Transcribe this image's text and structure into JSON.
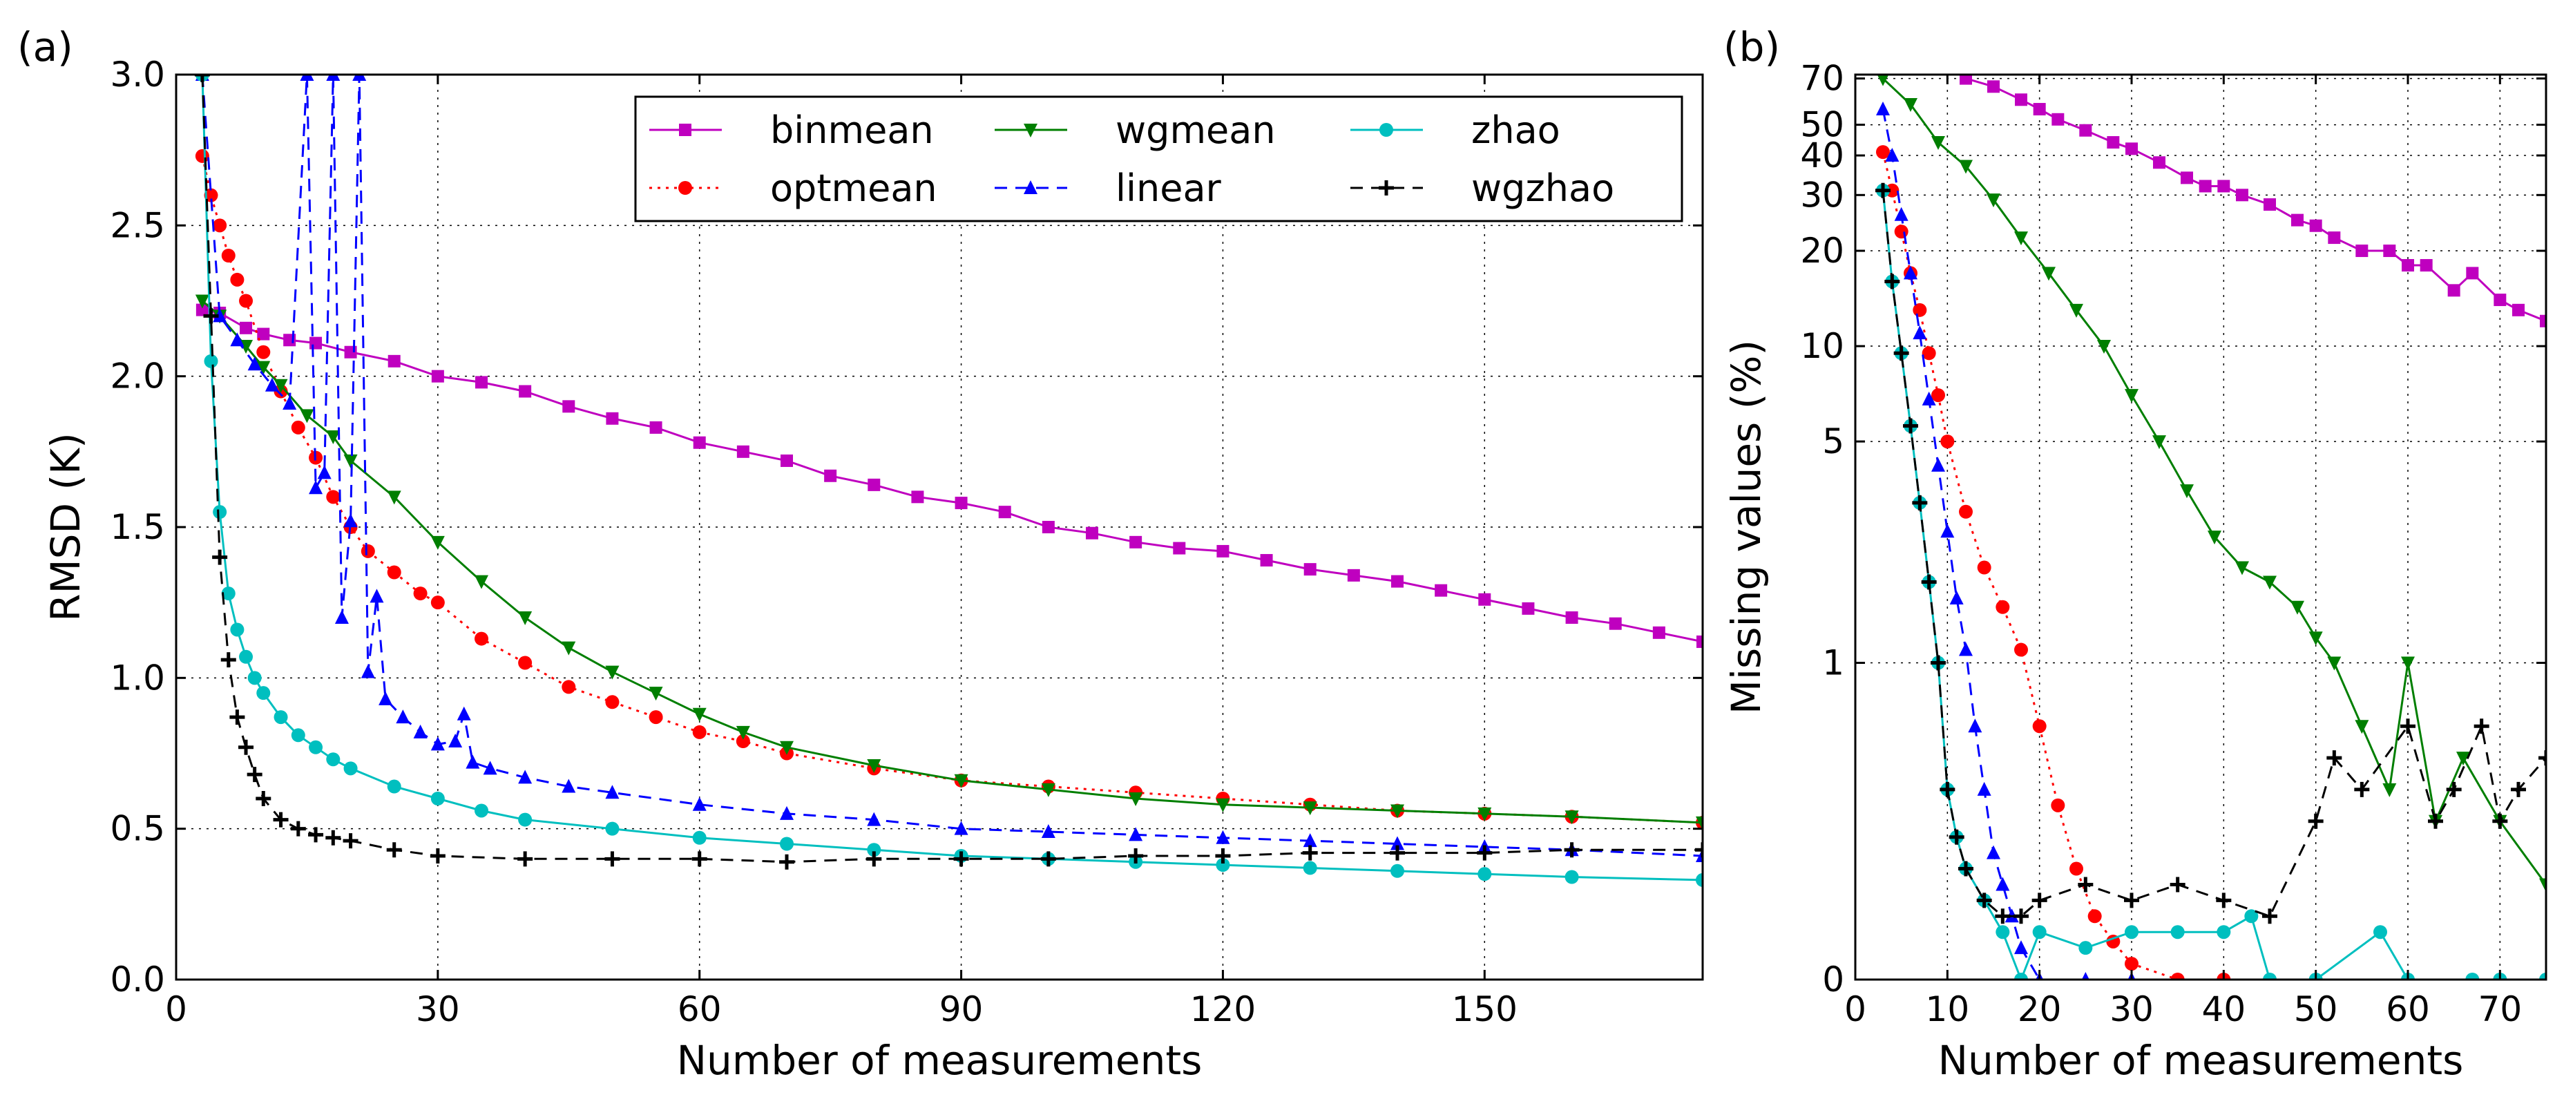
{
  "chart_data": [
    {
      "panel_label": "(a)",
      "type": "line",
      "xlabel": "Number of measurements",
      "ylabel": "RMSD (K)",
      "xlim": [
        0,
        175
      ],
      "ylim": [
        0.0,
        3.0
      ],
      "xticks": [
        0,
        30,
        60,
        90,
        120,
        150
      ],
      "xtick_labels": [
        "0",
        "30",
        "60",
        "90",
        "120",
        "150"
      ],
      "yticks": [
        0.0,
        0.5,
        1.0,
        1.5,
        2.0,
        2.5,
        3.0
      ],
      "ytick_labels": [
        "0.0",
        "0.5",
        "1.0",
        "1.5",
        "2.0",
        "2.5",
        "3.0"
      ],
      "grid": true,
      "legend_position": "upper-right",
      "series": [
        {
          "name": "binmean",
          "color": "#bf00bf",
          "marker": "square",
          "style": "solid",
          "x": [
            3,
            5,
            8,
            10,
            13,
            16,
            20,
            25,
            30,
            35,
            40,
            45,
            50,
            55,
            60,
            65,
            70,
            75,
            80,
            85,
            90,
            95,
            100,
            105,
            110,
            115,
            120,
            125,
            130,
            135,
            140,
            145,
            150,
            155,
            160,
            165,
            170,
            175
          ],
          "y": [
            2.22,
            2.21,
            2.16,
            2.14,
            2.12,
            2.11,
            2.08,
            2.05,
            2.0,
            1.98,
            1.95,
            1.9,
            1.86,
            1.83,
            1.78,
            1.75,
            1.72,
            1.67,
            1.64,
            1.6,
            1.58,
            1.55,
            1.5,
            1.48,
            1.45,
            1.43,
            1.42,
            1.39,
            1.36,
            1.34,
            1.32,
            1.29,
            1.26,
            1.23,
            1.2,
            1.18,
            1.15,
            1.12
          ]
        },
        {
          "name": "optmean",
          "color": "#ff0000",
          "marker": "circle",
          "style": "dotted",
          "x": [
            3,
            4,
            5,
            6,
            7,
            8,
            10,
            12,
            14,
            16,
            18,
            20,
            22,
            25,
            28,
            30,
            35,
            40,
            45,
            50,
            55,
            60,
            65,
            70,
            80,
            90,
            100,
            110,
            120,
            130,
            140,
            150,
            160,
            175
          ],
          "y": [
            2.73,
            2.6,
            2.5,
            2.4,
            2.32,
            2.25,
            2.08,
            1.95,
            1.83,
            1.73,
            1.6,
            1.5,
            1.42,
            1.35,
            1.28,
            1.25,
            1.13,
            1.05,
            0.97,
            0.92,
            0.87,
            0.82,
            0.79,
            0.75,
            0.7,
            0.66,
            0.64,
            0.62,
            0.6,
            0.58,
            0.56,
            0.55,
            0.54,
            0.52
          ]
        },
        {
          "name": "wgmean",
          "color": "#007f00",
          "marker": "triangle-down",
          "style": "solid",
          "x": [
            3,
            5,
            8,
            10,
            12,
            15,
            18,
            20,
            25,
            30,
            35,
            40,
            45,
            50,
            55,
            60,
            65,
            70,
            80,
            90,
            100,
            110,
            120,
            130,
            140,
            150,
            160,
            175
          ],
          "y": [
            2.25,
            2.2,
            2.1,
            2.03,
            1.97,
            1.87,
            1.8,
            1.72,
            1.6,
            1.45,
            1.32,
            1.2,
            1.1,
            1.02,
            0.95,
            0.88,
            0.82,
            0.77,
            0.71,
            0.66,
            0.63,
            0.6,
            0.58,
            0.57,
            0.56,
            0.55,
            0.54,
            0.52
          ]
        },
        {
          "name": "linear",
          "color": "#0000ff",
          "marker": "triangle-up",
          "style": "dashed",
          "x": [
            3,
            5,
            7,
            9,
            11,
            13,
            15,
            16,
            17,
            18,
            19,
            20,
            21,
            22,
            23,
            24,
            26,
            28,
            30,
            32,
            33,
            34,
            36,
            40,
            45,
            50,
            60,
            70,
            80,
            90,
            100,
            110,
            120,
            130,
            140,
            150,
            160,
            175
          ],
          "y": [
            3.0,
            2.2,
            2.12,
            2.04,
            1.97,
            1.91,
            3.0,
            1.63,
            1.68,
            3.0,
            1.2,
            1.52,
            3.0,
            1.02,
            1.27,
            0.93,
            0.87,
            0.82,
            0.78,
            0.79,
            0.88,
            0.72,
            0.7,
            0.67,
            0.64,
            0.62,
            0.58,
            0.55,
            0.53,
            0.5,
            0.49,
            0.48,
            0.47,
            0.46,
            0.45,
            0.44,
            0.43,
            0.41
          ]
        },
        {
          "name": "zhao",
          "color": "#00bfbf",
          "marker": "circle",
          "style": "solid",
          "x": [
            3,
            4,
            5,
            6,
            7,
            8,
            9,
            10,
            12,
            14,
            16,
            18,
            20,
            25,
            30,
            35,
            40,
            50,
            60,
            70,
            80,
            90,
            100,
            110,
            120,
            130,
            140,
            150,
            160,
            175
          ],
          "y": [
            3.0,
            2.05,
            1.55,
            1.28,
            1.16,
            1.07,
            1.0,
            0.95,
            0.87,
            0.81,
            0.77,
            0.73,
            0.7,
            0.64,
            0.6,
            0.56,
            0.53,
            0.5,
            0.47,
            0.45,
            0.43,
            0.41,
            0.4,
            0.39,
            0.38,
            0.37,
            0.36,
            0.35,
            0.34,
            0.33
          ]
        },
        {
          "name": "wgzhao",
          "color": "#000000",
          "marker": "plus",
          "style": "dashed",
          "x": [
            3,
            4,
            5,
            6,
            7,
            8,
            9,
            10,
            12,
            14,
            16,
            18,
            20,
            25,
            30,
            40,
            50,
            60,
            70,
            80,
            90,
            100,
            110,
            120,
            130,
            140,
            150,
            160,
            175
          ],
          "y": [
            3.0,
            2.2,
            1.4,
            1.06,
            0.87,
            0.77,
            0.68,
            0.6,
            0.53,
            0.5,
            0.48,
            0.47,
            0.46,
            0.43,
            0.41,
            0.4,
            0.4,
            0.4,
            0.39,
            0.4,
            0.4,
            0.4,
            0.41,
            0.41,
            0.42,
            0.42,
            0.42,
            0.43,
            0.43
          ]
        }
      ]
    },
    {
      "panel_label": "(b)",
      "type": "line",
      "xlabel": "Number of measurements",
      "ylabel": "Missing values (%)",
      "xlim": [
        0,
        75
      ],
      "ylim": [
        0,
        72
      ],
      "yscale": "symlog",
      "xticks": [
        0,
        10,
        20,
        30,
        40,
        50,
        60,
        70
      ],
      "xtick_labels": [
        "0",
        "10",
        "20",
        "30",
        "40",
        "50",
        "60",
        "70"
      ],
      "yticks": [
        0,
        1,
        5,
        10,
        20,
        30,
        40,
        50,
        70
      ],
      "ytick_labels": [
        "0",
        "1",
        "5",
        "10",
        "20",
        "30",
        "40",
        "50",
        "70"
      ],
      "grid": true,
      "series": [
        {
          "name": "binmean",
          "color": "#bf00bf",
          "marker": "square",
          "style": "solid",
          "x": [
            12,
            15,
            18,
            20,
            22,
            25,
            28,
            30,
            33,
            36,
            38,
            40,
            42,
            45,
            48,
            50,
            52,
            55,
            58,
            60,
            62,
            65,
            67,
            70,
            72,
            75
          ],
          "y": [
            70,
            66,
            60,
            56,
            52,
            48,
            44,
            42,
            38,
            34,
            32,
            32,
            30,
            28,
            25,
            24,
            22,
            20,
            20,
            18,
            18,
            15,
            17,
            14,
            13,
            12
          ]
        },
        {
          "name": "optmean",
          "color": "#ff0000",
          "marker": "circle",
          "style": "dotted",
          "x": [
            3,
            4,
            5,
            6,
            7,
            8,
            9,
            10,
            12,
            14,
            16,
            18,
            20,
            22,
            24,
            26,
            28,
            30,
            35,
            40
          ],
          "y": [
            41,
            31,
            23,
            17,
            13,
            9.5,
            7,
            5,
            3,
            2.0,
            1.5,
            1.1,
            0.8,
            0.55,
            0.35,
            0.2,
            0.12,
            0.05,
            0.0,
            0.0
          ]
        },
        {
          "name": "wgmean",
          "color": "#007f00",
          "marker": "triangle-down",
          "style": "solid",
          "x": [
            3,
            6,
            9,
            12,
            15,
            18,
            21,
            24,
            27,
            30,
            33,
            36,
            39,
            42,
            45,
            48,
            50,
            52,
            55,
            58,
            60,
            63,
            66,
            70,
            75
          ],
          "y": [
            70,
            58,
            44,
            37,
            29,
            22,
            17,
            13,
            10,
            7,
            5,
            3.5,
            2.5,
            2,
            1.8,
            1.5,
            1.2,
            1.0,
            0.8,
            0.6,
            1.0,
            0.5,
            0.7,
            0.5,
            0.3
          ]
        },
        {
          "name": "linear",
          "color": "#0000ff",
          "marker": "triangle-up",
          "style": "dashed",
          "x": [
            3,
            4,
            5,
            6,
            7,
            8,
            9,
            10,
            11,
            12,
            13,
            14,
            15,
            16,
            17,
            18,
            20,
            25,
            30
          ],
          "y": [
            56,
            40,
            26,
            17,
            11,
            6.8,
            4.2,
            2.6,
            1.6,
            1.1,
            0.8,
            0.6,
            0.4,
            0.3,
            0.2,
            0.1,
            0.0,
            0.0,
            0.0
          ]
        },
        {
          "name": "zhao",
          "color": "#00bfbf",
          "marker": "circle",
          "style": "solid",
          "x": [
            3,
            4,
            5,
            6,
            7,
            8,
            9,
            10,
            11,
            12,
            14,
            16,
            18,
            20,
            25,
            30,
            35,
            40,
            43,
            45,
            50,
            57,
            60,
            67,
            70,
            75
          ],
          "y": [
            31,
            16,
            9.5,
            5.6,
            3.2,
            1.8,
            1.0,
            0.6,
            0.45,
            0.35,
            0.25,
            0.15,
            0.0,
            0.15,
            0.1,
            0.15,
            0.15,
            0.15,
            0.2,
            0.0,
            0.0,
            0.15,
            0.0,
            0.0,
            0.0,
            0.0
          ]
        },
        {
          "name": "wgzhao",
          "color": "#000000",
          "marker": "plus",
          "style": "dashed",
          "x": [
            3,
            4,
            5,
            6,
            7,
            8,
            9,
            10,
            11,
            12,
            14,
            16,
            18,
            20,
            25,
            30,
            35,
            40,
            45,
            50,
            52,
            55,
            60,
            63,
            65,
            68,
            70,
            72,
            75
          ],
          "y": [
            31,
            16,
            9.5,
            5.6,
            3.2,
            1.8,
            1.0,
            0.6,
            0.45,
            0.35,
            0.25,
            0.2,
            0.2,
            0.25,
            0.3,
            0.25,
            0.3,
            0.25,
            0.2,
            0.5,
            0.7,
            0.6,
            0.8,
            0.5,
            0.6,
            0.8,
            0.5,
            0.6,
            0.7
          ]
        }
      ]
    }
  ]
}
